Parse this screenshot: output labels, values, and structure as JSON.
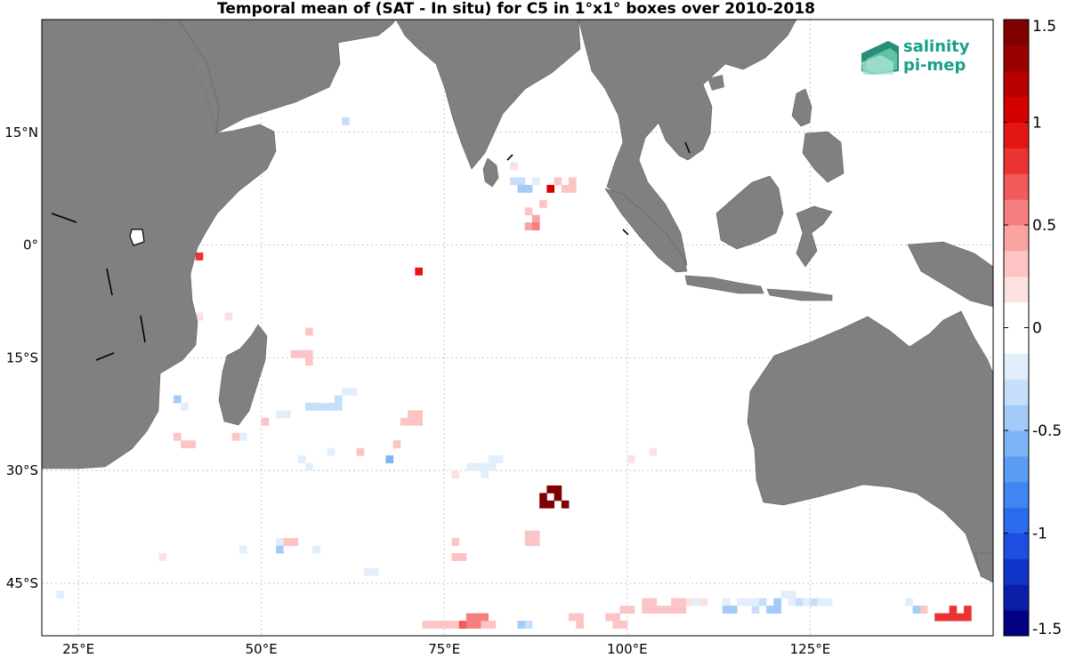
{
  "title": "Temporal mean of (SAT - In situ) for C5 in 1°x1° boxes over 2010-2018",
  "map": {
    "lon_range": [
      20,
      150
    ],
    "lat_range": [
      -52,
      30
    ],
    "land_color": "#808080",
    "ocean_color": "#ffffff",
    "lon_ticks": [
      {
        "value": 25,
        "label": "25°E"
      },
      {
        "value": 50,
        "label": "50°E"
      },
      {
        "value": 75,
        "label": "75°E"
      },
      {
        "value": 100,
        "label": "100°E"
      },
      {
        "value": 125,
        "label": "125°E"
      }
    ],
    "lat_ticks": [
      {
        "value": 15,
        "label": "15°N"
      },
      {
        "value": 0,
        "label": "0°"
      },
      {
        "value": -15,
        "label": "15°S"
      },
      {
        "value": -30,
        "label": "30°S"
      },
      {
        "value": -45,
        "label": "45°S"
      }
    ],
    "grid": true
  },
  "colorbar": {
    "range": [
      -1.5,
      1.5
    ],
    "ticks": [
      "1.5",
      "1",
      "0.5",
      "0",
      "-0.5",
      "-1",
      "-1.5"
    ],
    "tick_values": [
      1.5,
      1,
      0.5,
      0,
      -0.5,
      -1,
      -1.5
    ],
    "colors_bottom_to_top": [
      "#000080",
      "#0a1ea8",
      "#0f34c7",
      "#1c4ee0",
      "#2a6bf0",
      "#3f86f2",
      "#5a9df4",
      "#7db4f5",
      "#a3cbf7",
      "#c5defa",
      "#e3eefc",
      "#ffffff",
      "#ffffff",
      "#fde0e0",
      "#fcc4c4",
      "#f9a3a3",
      "#f57f7f",
      "#f05a5a",
      "#ea3434",
      "#e31515",
      "#d40000",
      "#b80000",
      "#9b0000",
      "#800000"
    ]
  },
  "logo": {
    "line1": "salinity",
    "line2": "pi-mep",
    "color": "#17a089"
  },
  "cells": [
    [
      22,
      -47,
      -0.2
    ],
    [
      36,
      -42,
      0.2
    ],
    [
      38,
      -21,
      -0.4
    ],
    [
      39,
      -22,
      -0.2
    ],
    [
      38,
      -26,
      0.3
    ],
    [
      39,
      -27,
      0.25
    ],
    [
      40,
      -27,
      0.3
    ],
    [
      41,
      -2,
      0.8
    ],
    [
      40,
      -10,
      0.2
    ],
    [
      41,
      -10,
      0.2
    ],
    [
      45,
      -10,
      0.2
    ],
    [
      42,
      -24,
      -0.1
    ],
    [
      46,
      -26,
      0.3
    ],
    [
      47,
      -26,
      -0.2
    ],
    [
      50,
      -24,
      0.3
    ],
    [
      51,
      -12,
      -0.1
    ],
    [
      52,
      -12,
      -0.1
    ],
    [
      52,
      -13,
      -0.1
    ],
    [
      52,
      -23,
      -0.2
    ],
    [
      53,
      -23,
      -0.2
    ],
    [
      56,
      -12,
      0.3
    ],
    [
      54,
      -15,
      0.3
    ],
    [
      55,
      -15,
      0.3
    ],
    [
      56,
      -15,
      0.3
    ],
    [
      56,
      -16,
      0.3
    ],
    [
      56,
      -22,
      -0.3
    ],
    [
      57,
      -22,
      -0.3
    ],
    [
      58,
      -22,
      -0.3
    ],
    [
      59,
      -22,
      -0.3
    ],
    [
      60,
      -22,
      -0.3
    ],
    [
      60,
      -21,
      -0.3
    ],
    [
      61,
      -20,
      -0.25
    ],
    [
      62,
      -20,
      -0.2
    ],
    [
      58,
      -21,
      -0.1
    ],
    [
      55,
      -29,
      -0.2
    ],
    [
      56,
      -30,
      -0.25
    ],
    [
      58,
      -27,
      -0.1
    ],
    [
      59,
      -28,
      -0.2
    ],
    [
      58,
      -32,
      -0.1
    ],
    [
      63,
      -28,
      0.3
    ],
    [
      67,
      -29,
      -0.6
    ],
    [
      68,
      -27,
      0.3
    ],
    [
      69,
      -24,
      0.3
    ],
    [
      70,
      -24,
      0.35
    ],
    [
      71,
      -24,
      0.35
    ],
    [
      70,
      -23,
      0.3
    ],
    [
      71,
      -23,
      0.3
    ],
    [
      52,
      -40,
      -0.25
    ],
    [
      52,
      -41,
      -0.4
    ],
    [
      53,
      -40,
      0.25
    ],
    [
      54,
      -40,
      0.25
    ],
    [
      57,
      -41,
      -0.2
    ],
    [
      47,
      -41,
      -0.2
    ],
    [
      64,
      -44,
      -0.2
    ],
    [
      65,
      -44,
      -0.2
    ],
    [
      61,
      16,
      -0.3
    ],
    [
      71,
      -4,
      0.9
    ],
    [
      84,
      10,
      0.15
    ],
    [
      84,
      8,
      -0.3
    ],
    [
      85,
      8,
      -0.3
    ],
    [
      85,
      7,
      -0.5
    ],
    [
      86,
      7,
      -0.4
    ],
    [
      86,
      4,
      0.3
    ],
    [
      87,
      3,
      0.4
    ],
    [
      86,
      2,
      0.4
    ],
    [
      87,
      2,
      0.5
    ],
    [
      87,
      8,
      -0.2
    ],
    [
      88,
      7,
      -0.1
    ],
    [
      88,
      5,
      0.3
    ],
    [
      89,
      7,
      1.0
    ],
    [
      90,
      8,
      0.3
    ],
    [
      91,
      7,
      0.3
    ],
    [
      92,
      8,
      0.35
    ],
    [
      92,
      7,
      0.35
    ],
    [
      76,
      -31,
      0.2
    ],
    [
      78,
      -30,
      -0.2
    ],
    [
      79,
      -30,
      -0.25
    ],
    [
      80,
      -30,
      -0.25
    ],
    [
      80,
      -31,
      -0.25
    ],
    [
      81,
      -29,
      -0.2
    ],
    [
      82,
      -29,
      -0.2
    ],
    [
      81,
      -30,
      -0.2
    ],
    [
      86,
      -39,
      0.35
    ],
    [
      87,
      -39,
      0.35
    ],
    [
      86,
      -40,
      0.35
    ],
    [
      87,
      -40,
      0.35
    ],
    [
      76,
      -40,
      0.3
    ],
    [
      76,
      -42,
      0.3
    ],
    [
      77,
      -42,
      0.3
    ],
    [
      89,
      -33,
      1.6
    ],
    [
      90,
      -33,
      1.6
    ],
    [
      88,
      -34,
      1.6
    ],
    [
      90,
      -34,
      1.6
    ],
    [
      88,
      -35,
      1.6
    ],
    [
      89,
      -35,
      1.6
    ],
    [
      91,
      -35,
      1.6
    ],
    [
      100,
      -29,
      0.2
    ],
    [
      103,
      -28,
      0.2
    ],
    [
      101,
      -33,
      -0.1
    ],
    [
      75,
      -51,
      0.3
    ],
    [
      76,
      -51,
      0.3
    ],
    [
      77,
      -51,
      0.7
    ],
    [
      78,
      -51,
      0.6
    ],
    [
      79,
      -51,
      0.5
    ],
    [
      80,
      -51,
      0.3
    ],
    [
      78,
      -50,
      0.6
    ],
    [
      79,
      -50,
      0.6
    ],
    [
      80,
      -50,
      0.55
    ],
    [
      72,
      -51,
      0.3
    ],
    [
      73,
      -51,
      0.3
    ],
    [
      74,
      -51,
      0.3
    ],
    [
      81,
      -51,
      0.3
    ],
    [
      85,
      -51,
      -0.5
    ],
    [
      86,
      -51,
      -0.3
    ],
    [
      92,
      -50,
      0.3
    ],
    [
      93,
      -50,
      0.3
    ],
    [
      93,
      -51,
      0.3
    ],
    [
      97,
      -50,
      0.3
    ],
    [
      98,
      -50,
      0.3
    ],
    [
      99,
      -49,
      0.3
    ],
    [
      100,
      -49,
      0.3
    ],
    [
      98,
      -51,
      0.3
    ],
    [
      99,
      -51,
      0.3
    ],
    [
      102,
      -48,
      0.3
    ],
    [
      103,
      -48,
      0.3
    ],
    [
      102,
      -49,
      0.3
    ],
    [
      103,
      -49,
      0.3
    ],
    [
      104,
      -49,
      0.35
    ],
    [
      105,
      -49,
      0.35
    ],
    [
      106,
      -49,
      0.35
    ],
    [
      107,
      -49,
      0.3
    ],
    [
      106,
      -48,
      0.3
    ],
    [
      107,
      -48,
      0.3
    ],
    [
      108,
      -48,
      0.2
    ],
    [
      109,
      -48,
      -0.2
    ],
    [
      110,
      -48,
      0.2
    ],
    [
      111,
      -48,
      -0.1
    ],
    [
      113,
      -48,
      -0.25
    ],
    [
      113,
      -49,
      -0.4
    ],
    [
      114,
      -49,
      -0.4
    ],
    [
      115,
      -48,
      -0.2
    ],
    [
      116,
      -48,
      -0.2
    ],
    [
      117,
      -49,
      -0.3
    ],
    [
      117,
      -48,
      -0.2
    ],
    [
      118,
      -48,
      -0.3
    ],
    [
      119,
      -49,
      -0.4
    ],
    [
      120,
      -48,
      -0.4
    ],
    [
      120,
      -49,
      -0.5
    ],
    [
      121,
      -47,
      -0.2
    ],
    [
      122,
      -47,
      -0.2
    ],
    [
      122,
      -48,
      -0.25
    ],
    [
      123,
      -48,
      -0.3
    ],
    [
      124,
      -48,
      -0.2
    ],
    [
      125,
      -48,
      -0.3
    ],
    [
      126,
      -48,
      -0.2
    ],
    [
      127,
      -48,
      -0.2
    ],
    [
      138,
      -48,
      -0.2
    ],
    [
      139,
      -49,
      -0.4
    ],
    [
      140,
      -49,
      0.3
    ],
    [
      142,
      -50,
      0.8
    ],
    [
      143,
      -50,
      0.8
    ],
    [
      144,
      -50,
      0.8
    ],
    [
      145,
      -50,
      0.8
    ],
    [
      146,
      -50,
      0.8
    ],
    [
      144,
      -49,
      0.8
    ],
    [
      146,
      -49,
      0.8
    ]
  ]
}
